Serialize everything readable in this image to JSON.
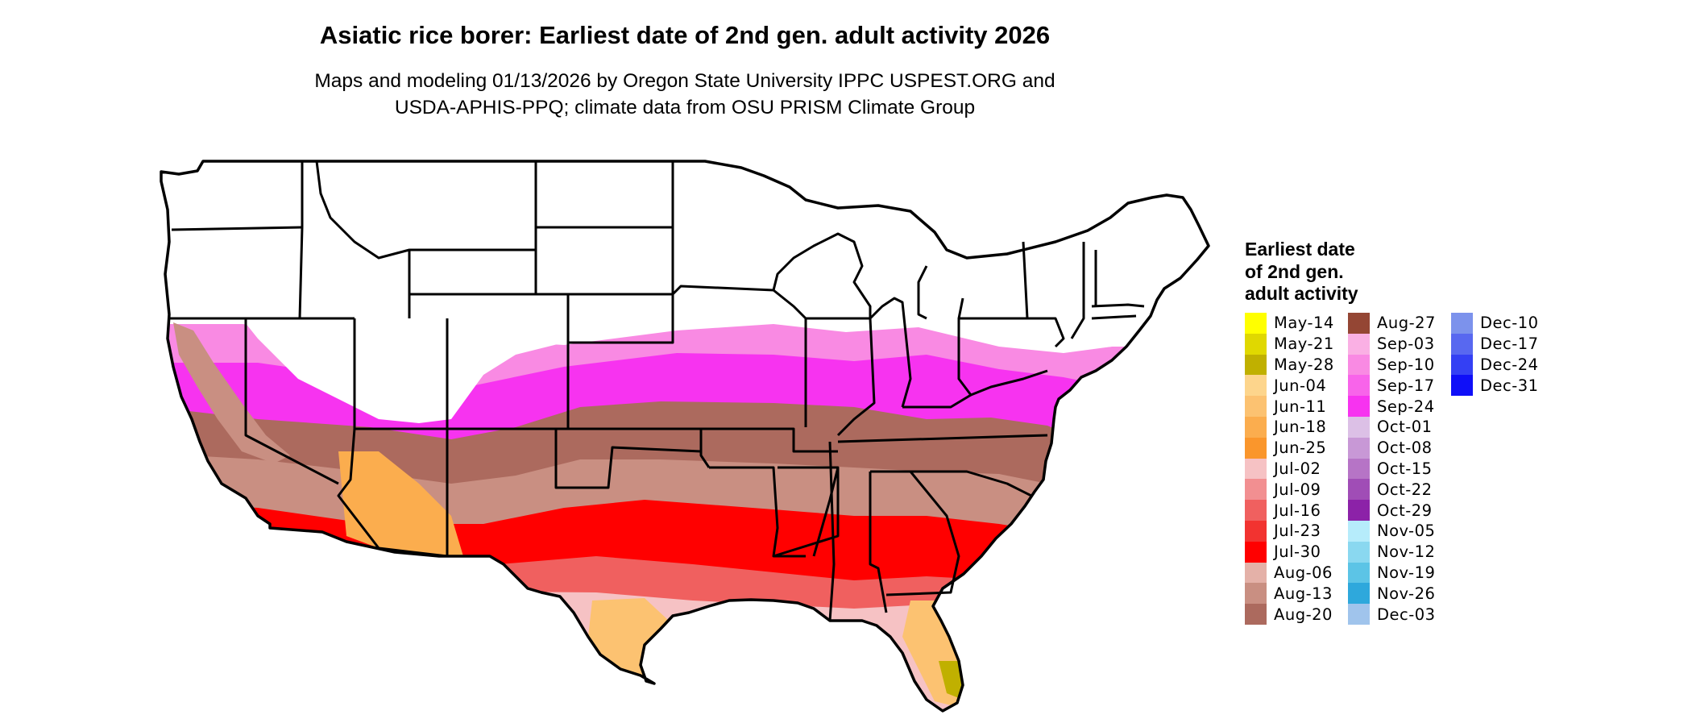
{
  "title": "Asiatic rice borer: Earliest date of 2nd gen. adult activity 2026",
  "subtitle": {
    "line1": "Maps and modeling 01/13/2026 by Oregon State University IPPC USPEST.ORG and",
    "line2": "USDA-APHIS-PPQ; climate data from OSU PRISM Climate Group"
  },
  "legend": {
    "title_lines": [
      "Earliest date",
      "of 2nd gen.",
      "adult activity"
    ],
    "columns": [
      [
        {
          "label": "May-14",
          "color": "#ffff00"
        },
        {
          "label": "May-21",
          "color": "#e0d800"
        },
        {
          "label": "May-28",
          "color": "#c0b000"
        },
        {
          "label": "Jun-04",
          "color": "#fdd58c"
        },
        {
          "label": "Jun-11",
          "color": "#fcc271"
        },
        {
          "label": "Jun-18",
          "color": "#fbad4e"
        },
        {
          "label": "Jun-25",
          "color": "#fa962c"
        },
        {
          "label": "Jul-02",
          "color": "#f6c2c4"
        },
        {
          "label": "Jul-09",
          "color": "#f28f91"
        },
        {
          "label": "Jul-16",
          "color": "#f0605f"
        },
        {
          "label": "Jul-23",
          "color": "#f23330"
        },
        {
          "label": "Jul-30",
          "color": "#ff0000"
        },
        {
          "label": "Aug-06",
          "color": "#e4b1a8"
        },
        {
          "label": "Aug-13",
          "color": "#c98f82"
        },
        {
          "label": "Aug-20",
          "color": "#ac6a5e"
        }
      ],
      [
        {
          "label": "Aug-27",
          "color": "#944634"
        },
        {
          "label": "Sep-03",
          "color": "#fab0e4"
        },
        {
          "label": "Sep-10",
          "color": "#f98ae3"
        },
        {
          "label": "Sep-17",
          "color": "#f864ea"
        },
        {
          "label": "Sep-24",
          "color": "#f733f0"
        },
        {
          "label": "Oct-01",
          "color": "#dcc0e6"
        },
        {
          "label": "Oct-08",
          "color": "#c898d6"
        },
        {
          "label": "Oct-15",
          "color": "#b674c6"
        },
        {
          "label": "Oct-22",
          "color": "#a04db6"
        },
        {
          "label": "Oct-29",
          "color": "#8c22a8"
        },
        {
          "label": "Nov-05",
          "color": "#b6ecfb"
        },
        {
          "label": "Nov-12",
          "color": "#8ad8f0"
        },
        {
          "label": "Nov-19",
          "color": "#5cc4e6"
        },
        {
          "label": "Nov-26",
          "color": "#2ea8dc"
        },
        {
          "label": "Dec-03",
          "color": "#a0c4ec"
        }
      ],
      [
        {
          "label": "Dec-10",
          "color": "#7c92ec"
        },
        {
          "label": "Dec-17",
          "color": "#5868f0"
        },
        {
          "label": "Dec-24",
          "color": "#3440f4"
        },
        {
          "label": "Dec-31",
          "color": "#0f0ff8"
        }
      ]
    ]
  }
}
